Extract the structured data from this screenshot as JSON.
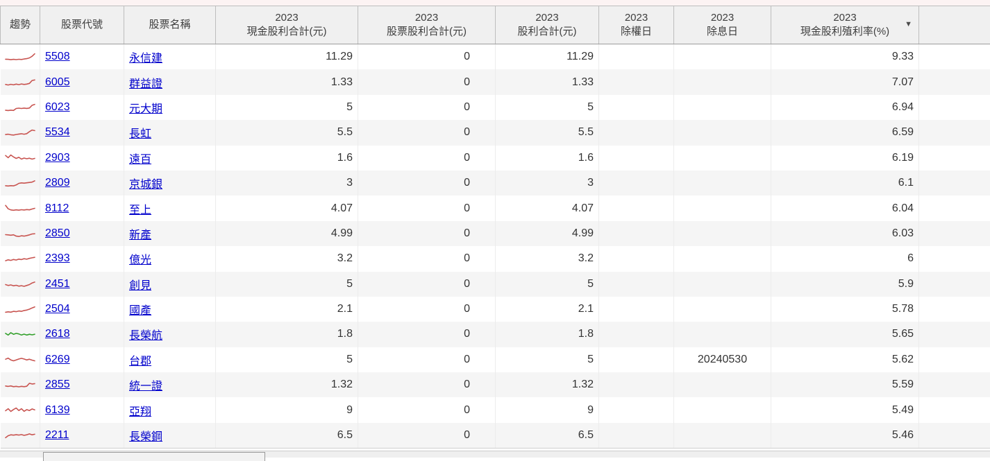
{
  "colors": {
    "spark_red": "#c85450",
    "spark_green": "#33a02c",
    "link_blue": "#0000cc",
    "header_bg": "#f0f0f0",
    "zebra_bg": "#f5f5f5",
    "top_strip": "#fcf3f3"
  },
  "table": {
    "sort_icon": "▼",
    "columns": [
      {
        "key": "trend",
        "year": "",
        "label": "趨勢"
      },
      {
        "key": "code",
        "year": "",
        "label": "股票代號"
      },
      {
        "key": "name",
        "year": "",
        "label": "股票名稱"
      },
      {
        "key": "cash",
        "year": "2023",
        "label": "現金股利合計(元)"
      },
      {
        "key": "stock",
        "year": "2023",
        "label": "股票股利合計(元)"
      },
      {
        "key": "total",
        "year": "2023",
        "label": "股利合計(元)"
      },
      {
        "key": "exright",
        "year": "2023",
        "label": "除權日"
      },
      {
        "key": "exdiv",
        "year": "2023",
        "label": "除息日"
      },
      {
        "key": "yield",
        "year": "2023",
        "label": "現金股利殖利率(%)",
        "sorted": "desc"
      },
      {
        "key": "blank",
        "year": "",
        "label": ""
      }
    ],
    "rows": [
      {
        "code": "5508",
        "name": "永信建",
        "cash": "11.29",
        "stock": "0",
        "total": "11.29",
        "exright": "",
        "exdiv": "",
        "yield": "9.33",
        "trend_color": "red",
        "trend": [
          2.8,
          2.6,
          2.2,
          2.6,
          2.3,
          2.7,
          2.5,
          3.0,
          3.4,
          4.2,
          6.0,
          8.8
        ]
      },
      {
        "code": "6005",
        "name": "群益證",
        "cash": "1.33",
        "stock": "0",
        "total": "1.33",
        "exright": "",
        "exdiv": "",
        "yield": "7.07",
        "trend_color": "red",
        "trend": [
          3.2,
          2.6,
          3.4,
          2.8,
          3.6,
          3.0,
          3.8,
          3.2,
          3.6,
          4.4,
          7.6,
          8.2
        ]
      },
      {
        "code": "6023",
        "name": "元大期",
        "cash": "5",
        "stock": "0",
        "total": "5",
        "exright": "",
        "exdiv": "",
        "yield": "6.94",
        "trend_color": "red",
        "trend": [
          2.2,
          2.0,
          2.4,
          2.1,
          4.2,
          4.6,
          4.2,
          4.7,
          4.3,
          4.8,
          7.8,
          8.8
        ]
      },
      {
        "code": "5534",
        "name": "長虹",
        "cash": "5.5",
        "stock": "0",
        "total": "5.5",
        "exright": "",
        "exdiv": "",
        "yield": "6.59",
        "trend_color": "red",
        "trend": [
          3.0,
          3.4,
          2.8,
          2.5,
          3.1,
          3.5,
          3.9,
          3.4,
          4.0,
          6.2,
          8.0,
          7.4
        ]
      },
      {
        "code": "2903",
        "name": "遠百",
        "cash": "1.6",
        "stock": "0",
        "total": "1.6",
        "exright": "",
        "exdiv": "",
        "yield": "6.19",
        "trend_color": "red",
        "trend": [
          8.2,
          5.8,
          8.8,
          6.6,
          5.0,
          6.2,
          4.2,
          5.4,
          4.6,
          5.2,
          4.2,
          5.0
        ]
      },
      {
        "code": "2809",
        "name": "京城銀",
        "cash": "3",
        "stock": "0",
        "total": "3",
        "exright": "",
        "exdiv": "",
        "yield": "6.1",
        "trend_color": "red",
        "trend": [
          2.4,
          2.1,
          2.5,
          2.2,
          3.2,
          5.0,
          5.5,
          5.2,
          5.6,
          6.0,
          6.4,
          7.8
        ]
      },
      {
        "code": "8112",
        "name": "至上",
        "cash": "4.07",
        "stock": "0",
        "total": "4.07",
        "exright": "",
        "exdiv": "",
        "yield": "6.04",
        "trend_color": "red",
        "trend": [
          9.0,
          5.2,
          4.0,
          3.6,
          4.1,
          3.7,
          4.2,
          3.9,
          4.4,
          4.1,
          5.0,
          5.8
        ]
      },
      {
        "code": "2850",
        "name": "新產",
        "cash": "4.99",
        "stock": "0",
        "total": "4.99",
        "exright": "",
        "exdiv": "",
        "yield": "6.03",
        "trend_color": "red",
        "trend": [
          4.2,
          4.0,
          3.6,
          4.1,
          2.6,
          2.2,
          3.0,
          2.6,
          3.2,
          4.0,
          5.0,
          5.2
        ]
      },
      {
        "code": "2393",
        "name": "億光",
        "cash": "3.2",
        "stock": "0",
        "total": "3.2",
        "exright": "",
        "exdiv": "",
        "yield": "6",
        "trend_color": "red",
        "trend": [
          3.0,
          4.0,
          3.4,
          4.4,
          3.8,
          4.8,
          4.3,
          5.2,
          4.7,
          5.6,
          6.2,
          6.8
        ]
      },
      {
        "code": "2451",
        "name": "創見",
        "cash": "5",
        "stock": "0",
        "total": "5",
        "exright": "",
        "exdiv": "",
        "yield": "5.9",
        "trend_color": "red",
        "trend": [
          5.0,
          4.0,
          4.6,
          3.6,
          4.2,
          3.2,
          3.8,
          3.1,
          4.0,
          5.0,
          6.8,
          7.8
        ]
      },
      {
        "code": "2504",
        "name": "國產",
        "cash": "2.1",
        "stock": "0",
        "total": "2.1",
        "exright": "",
        "exdiv": "",
        "yield": "5.78",
        "trend_color": "red",
        "trend": [
          2.0,
          2.5,
          2.1,
          3.0,
          2.6,
          3.4,
          3.0,
          3.9,
          4.4,
          5.4,
          6.8,
          7.9
        ]
      },
      {
        "code": "2618",
        "name": "長榮航",
        "cash": "1.8",
        "stock": "0",
        "total": "1.8",
        "exright": "",
        "exdiv": "",
        "yield": "5.65",
        "trend_color": "green",
        "trend": [
          6.2,
          4.4,
          7.0,
          5.2,
          6.2,
          5.6,
          4.4,
          5.4,
          4.4,
          5.2,
          4.6,
          5.2
        ]
      },
      {
        "code": "6269",
        "name": "台郡",
        "cash": "5",
        "stock": "0",
        "total": "5",
        "exright": "",
        "exdiv": "20240530",
        "yield": "5.62",
        "trend_color": "red",
        "trend": [
          6.0,
          7.2,
          5.2,
          4.2,
          5.2,
          6.2,
          7.0,
          6.2,
          5.2,
          6.0,
          5.0,
          4.2
        ]
      },
      {
        "code": "2855",
        "name": "統一證",
        "cash": "1.32",
        "stock": "0",
        "total": "1.32",
        "exright": "",
        "exdiv": "",
        "yield": "5.59",
        "trend_color": "red",
        "trend": [
          4.0,
          3.5,
          4.1,
          3.2,
          3.6,
          3.1,
          3.6,
          3.2,
          3.7,
          7.0,
          6.2,
          6.6
        ]
      },
      {
        "code": "6139",
        "name": "亞翔",
        "cash": "9",
        "stock": "0",
        "total": "9",
        "exright": "",
        "exdiv": "",
        "yield": "5.49",
        "trend_color": "red",
        "trend": [
          5.0,
          7.2,
          4.2,
          6.4,
          8.0,
          5.2,
          7.2,
          4.4,
          6.2,
          5.2,
          7.0,
          6.0
        ]
      },
      {
        "code": "2211",
        "name": "長榮鋼",
        "cash": "6.5",
        "stock": "0",
        "total": "6.5",
        "exright": "",
        "exdiv": "",
        "yield": "5.46",
        "trend_color": "red",
        "trend": [
          2.8,
          5.0,
          6.0,
          5.6,
          6.1,
          5.7,
          6.2,
          5.4,
          6.0,
          7.0,
          6.0,
          6.6
        ]
      }
    ]
  }
}
